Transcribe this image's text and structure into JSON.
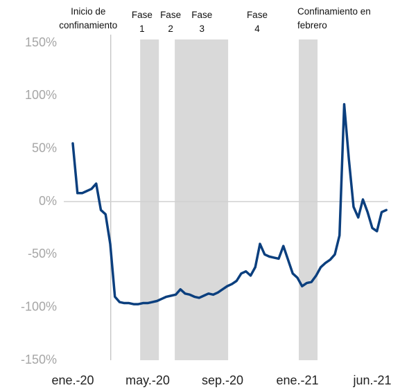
{
  "chart_data": {
    "type": "line",
    "color": "#0b3f7e",
    "categories": [
      "ene.-20",
      null,
      null,
      null,
      null,
      null,
      null,
      null,
      null,
      null,
      null,
      null,
      null,
      null,
      null,
      null,
      "may.-20",
      null,
      null,
      null,
      null,
      null,
      null,
      null,
      null,
      null,
      null,
      null,
      null,
      null,
      null,
      null,
      "sep.-20",
      null,
      null,
      null,
      null,
      null,
      null,
      null,
      null,
      null,
      null,
      null,
      null,
      null,
      null,
      null,
      "ene.-21",
      null,
      null,
      null,
      null,
      null,
      null,
      null,
      null,
      null,
      null,
      null,
      null,
      null,
      null,
      null,
      "jun.-21",
      null,
      null,
      null
    ],
    "values": [
      55,
      8,
      8,
      10,
      12,
      17,
      -8,
      -12,
      -40,
      -90,
      -95,
      -96,
      -96,
      -97,
      -97,
      -96,
      -96,
      -95,
      -94,
      -92,
      -90,
      -89,
      -88,
      -83,
      -87,
      -88,
      -90,
      -91,
      -89,
      -87,
      -88,
      -86,
      -83,
      -80,
      -78,
      -75,
      -68,
      -66,
      -70,
      -62,
      -40,
      -50,
      -52,
      -53,
      -54,
      -42,
      -55,
      -68,
      -72,
      -80,
      -77,
      -76,
      -70,
      -62,
      -58,
      -55,
      -50,
      -32,
      92,
      40,
      -5,
      -15,
      2,
      -10,
      -25,
      -28,
      -10,
      -8
    ],
    "ylim": [
      -150,
      150
    ],
    "yticks": [
      {
        "value": 150,
        "label": "150%"
      },
      {
        "value": 100,
        "label": "100%"
      },
      {
        "value": 50,
        "label": "50%"
      },
      {
        "value": 0,
        "label": "0%"
      },
      {
        "value": -50,
        "label": "-50%"
      },
      {
        "value": -100,
        "label": "-100%"
      },
      {
        "value": -150,
        "label": "-150%"
      }
    ],
    "bands": [
      [
        14.4,
        18.4
      ],
      [
        21.8,
        33.2
      ],
      [
        48.3,
        52.3
      ]
    ],
    "vline": 8.1,
    "annotations": [
      {
        "text": [
          "Inicio de",
          "confinamiento"
        ],
        "x": 3.3
      },
      {
        "text": [
          "Fase",
          "1"
        ],
        "x": 14.8
      },
      {
        "text": [
          "Fase",
          "2"
        ],
        "x": 20.9
      },
      {
        "text": [
          "Fase",
          "3"
        ],
        "x": 27.6
      },
      {
        "text": [
          "Fase",
          "4"
        ],
        "x": 39.4
      },
      {
        "text": [
          "Confinamiento en",
          "febrero"
        ],
        "x": 48,
        "align": "left"
      }
    ]
  }
}
